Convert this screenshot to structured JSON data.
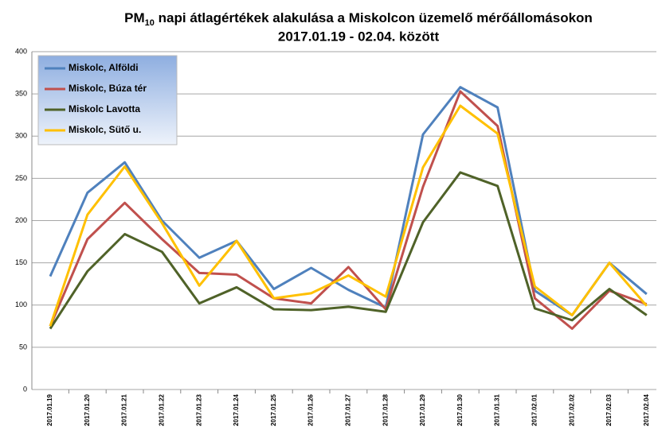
{
  "chart_data": {
    "type": "line",
    "title_parts": [
      "PM",
      "10",
      " napi átlagértékek alakulása a Miskolcon üzemelő mérőállomásokon"
    ],
    "subtitle": "2017.01.19 - 02.04. között",
    "categories": [
      "2017.01.19",
      "2017.01.20",
      "2017.01.21",
      "2017.01.22",
      "2017.01.23",
      "2017.01.24",
      "2017.01.25",
      "2017.01.26",
      "2017.01.27",
      "2017.01.28",
      "2017.01.29",
      "2017.01.30",
      "2017.01.31",
      "2017.02.01",
      "2017.02.02",
      "2017.02.03",
      "2017.02.04"
    ],
    "series": [
      {
        "name": "Miskolc, Alföldi",
        "color": "#4f81bd",
        "values": [
          134,
          233,
          269,
          200,
          156,
          176,
          119,
          144,
          118,
          97,
          302,
          358,
          334,
          117,
          88,
          150,
          113
        ]
      },
      {
        "name": "Miskolc, Búza tér",
        "color": "#c0504d",
        "values": [
          75,
          178,
          221,
          178,
          138,
          136,
          108,
          102,
          145,
          95,
          240,
          353,
          312,
          108,
          72,
          117,
          101
        ]
      },
      {
        "name": "Miskolc Lavotta",
        "color": "#4f6228",
        "values": [
          72,
          140,
          184,
          163,
          102,
          121,
          95,
          94,
          98,
          92,
          198,
          257,
          241,
          96,
          82,
          119,
          88
        ]
      },
      {
        "name": "Miskolc, Sütő u.",
        "color": "#ffc000",
        "values": [
          75,
          207,
          264,
          197,
          123,
          176,
          108,
          114,
          135,
          110,
          263,
          336,
          303,
          122,
          88,
          150,
          99
        ]
      }
    ],
    "ylim": [
      0,
      400
    ],
    "yticks": [
      0,
      50,
      100,
      150,
      200,
      250,
      300,
      350,
      400
    ],
    "grid": true,
    "legend": "upper left"
  }
}
